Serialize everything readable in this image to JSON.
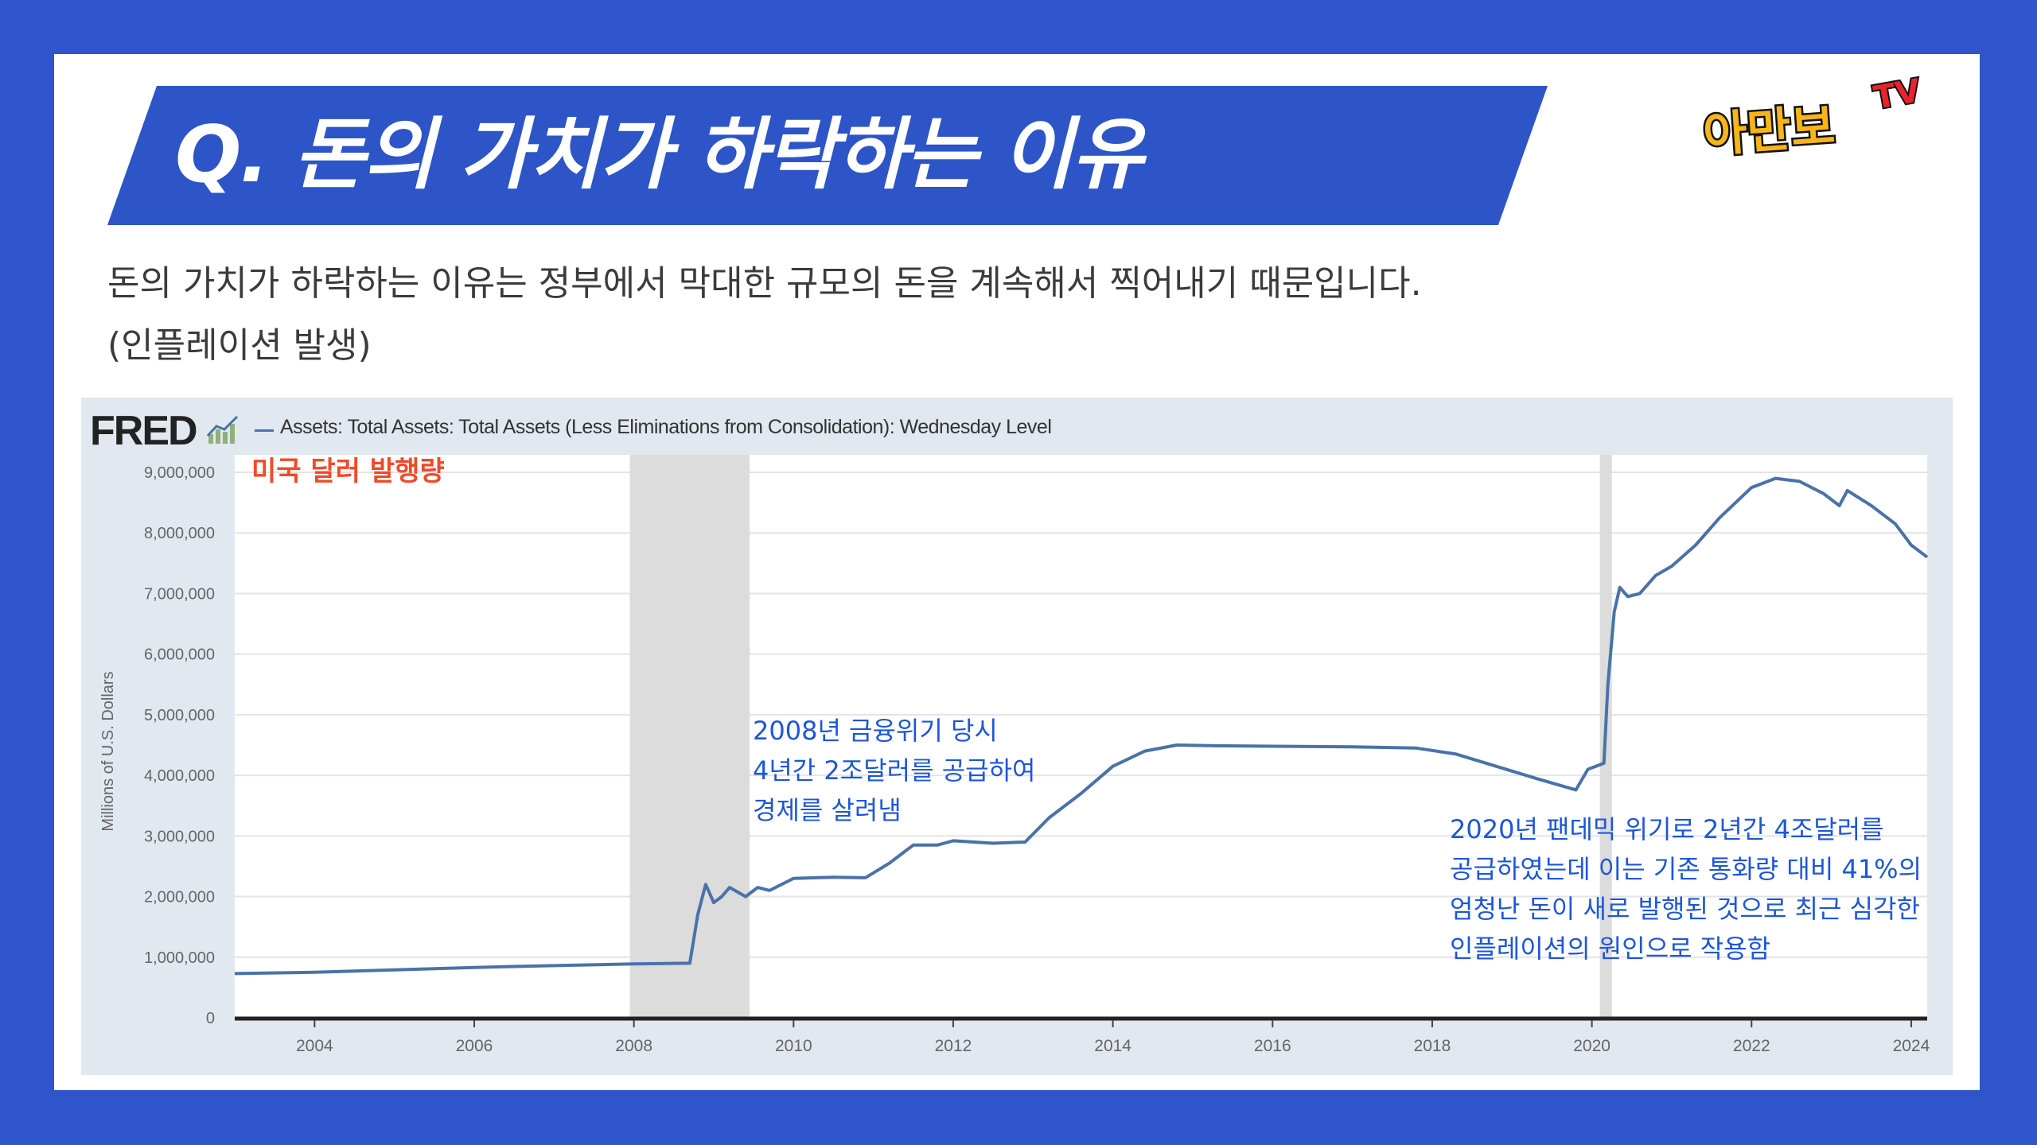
{
  "header": {
    "title": "Q. 돈의 가치가 하락하는 이유",
    "logo_main": "아만보",
    "logo_tv": "TV"
  },
  "description": {
    "line1": "돈의 가치가 하락하는 이유는 정부에서 막대한 규모의 돈을 계속해서 찍어내기 때문입니다.",
    "line2": "(인플레이션 발생)"
  },
  "fred": {
    "logo": "FRED",
    "series_title": "Assets: Total Assets: Total Assets (Less Eliminations from Consolidation): Wednesday Level",
    "overlay_label": "미국 달러 발행량"
  },
  "annotations": {
    "crisis_2008": [
      "2008년 금융위기 당시",
      "4년간 2조달러를 공급하여",
      "경제를 살려냄"
    ],
    "pandemic_2020": [
      "2020년 팬데믹 위기로 2년간 4조달러를",
      "공급하였는데 이는 기존 통화량 대비 41%의",
      "엄청난 돈이 새로 발행된 것으로 최근 심각한",
      "인플레이션의 원인으로 작용함"
    ]
  },
  "colors": {
    "background": "#2e55c9",
    "banner": "#2d55c8",
    "series": "#4a72a8",
    "recession": "#dcdcdc",
    "annotation": "#1e56d8",
    "overlay_label": "#f04a28"
  },
  "chart_data": {
    "type": "line",
    "title": "Assets: Total Assets: Total Assets (Less Eliminations from Consolidation): Wednesday Level",
    "xlabel": "",
    "ylabel": "Millions of U.S. Dollars",
    "xlim": [
      2003.0,
      2024.2
    ],
    "ylim": [
      0,
      9000000
    ],
    "x_ticks": [
      2004,
      2006,
      2008,
      2010,
      2012,
      2014,
      2016,
      2018,
      2020,
      2022,
      2024
    ],
    "y_ticks": [
      0,
      1000000,
      2000000,
      3000000,
      4000000,
      5000000,
      6000000,
      7000000,
      8000000,
      9000000
    ],
    "y_tick_labels": [
      "0",
      "1,000,000",
      "2,000,000",
      "3,000,000",
      "4,000,000",
      "5,000,000",
      "6,000,000",
      "7,000,000",
      "8,000,000",
      "9,000,000"
    ],
    "grid": true,
    "recessions": [
      [
        2007.95,
        2009.45
      ],
      [
        2020.1,
        2020.25
      ]
    ],
    "series": [
      {
        "name": "Assets: Total Assets: Total Assets (Less Eliminations from Consolidation): Wednesday Level",
        "x": [
          2003.0,
          2004.0,
          2005.0,
          2006.0,
          2007.0,
          2008.0,
          2008.7,
          2008.8,
          2008.9,
          2009.0,
          2009.1,
          2009.2,
          2009.4,
          2009.55,
          2009.7,
          2010.0,
          2010.5,
          2010.9,
          2011.2,
          2011.5,
          2011.8,
          2012.0,
          2012.5,
          2012.9,
          2013.2,
          2013.6,
          2014.0,
          2014.4,
          2014.8,
          2015.2,
          2016.0,
          2017.0,
          2017.8,
          2018.3,
          2018.8,
          2019.3,
          2019.8,
          2019.95,
          2020.15,
          2020.2,
          2020.28,
          2020.35,
          2020.45,
          2020.6,
          2020.8,
          2021.0,
          2021.3,
          2021.6,
          2022.0,
          2022.3,
          2022.6,
          2022.9,
          2023.1,
          2023.2,
          2023.5,
          2023.8,
          2024.0,
          2024.2
        ],
        "y": [
          730000,
          750000,
          790000,
          830000,
          860000,
          890000,
          900000,
          1700000,
          2200000,
          1900000,
          2000000,
          2150000,
          2000000,
          2150000,
          2100000,
          2300000,
          2320000,
          2310000,
          2550000,
          2850000,
          2850000,
          2920000,
          2880000,
          2900000,
          3300000,
          3700000,
          4150000,
          4400000,
          4500000,
          4490000,
          4480000,
          4470000,
          4450000,
          4350000,
          4150000,
          3950000,
          3760000,
          4100000,
          4200000,
          5500000,
          6700000,
          7100000,
          6950000,
          7000000,
          7300000,
          7450000,
          7800000,
          8250000,
          8750000,
          8900000,
          8850000,
          8650000,
          8450000,
          8700000,
          8450000,
          8150000,
          7800000,
          7600000
        ]
      }
    ]
  }
}
